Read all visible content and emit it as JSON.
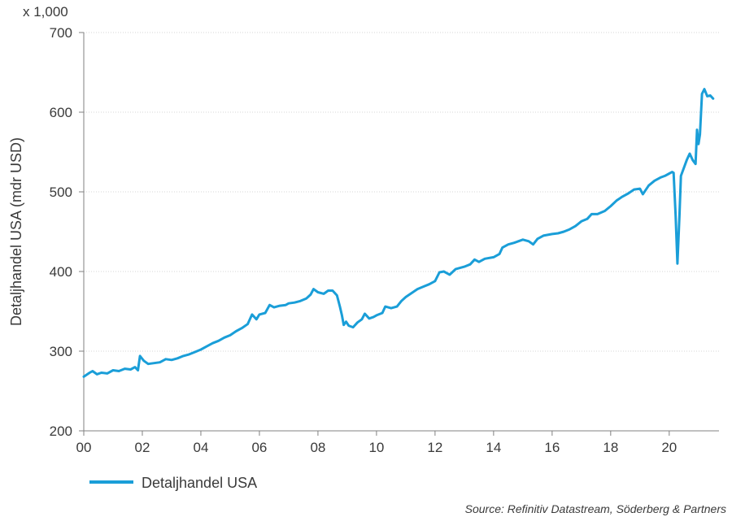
{
  "chart_data": {
    "type": "line",
    "scale_note": "x 1,000",
    "ylabel": "Detaljhandel USA (mdr USD)",
    "ylim": [
      200,
      700
    ],
    "yticks": [
      200,
      300,
      400,
      500,
      600,
      700
    ],
    "xlim": [
      2000,
      2021.7
    ],
    "xticks": [
      {
        "value": 2000,
        "label": "00"
      },
      {
        "value": 2002,
        "label": "02"
      },
      {
        "value": 2004,
        "label": "04"
      },
      {
        "value": 2006,
        "label": "06"
      },
      {
        "value": 2008,
        "label": "08"
      },
      {
        "value": 2010,
        "label": "10"
      },
      {
        "value": 2012,
        "label": "12"
      },
      {
        "value": 2014,
        "label": "14"
      },
      {
        "value": 2016,
        "label": "16"
      },
      {
        "value": 2018,
        "label": "18"
      },
      {
        "value": 2020,
        "label": "20"
      }
    ],
    "grid": true,
    "legend_position": "bottom-left",
    "series": [
      {
        "name": "Detaljhandel USA",
        "color": "#1a9ed8",
        "points": [
          [
            2000.0,
            268
          ],
          [
            2000.2,
            273
          ],
          [
            2000.3,
            275
          ],
          [
            2000.45,
            271
          ],
          [
            2000.6,
            273
          ],
          [
            2000.8,
            272
          ],
          [
            2001.0,
            276
          ],
          [
            2001.2,
            275
          ],
          [
            2001.4,
            278
          ],
          [
            2001.6,
            277
          ],
          [
            2001.75,
            280
          ],
          [
            2001.85,
            276
          ],
          [
            2001.92,
            294
          ],
          [
            2002.05,
            288
          ],
          [
            2002.2,
            284
          ],
          [
            2002.4,
            285
          ],
          [
            2002.6,
            286
          ],
          [
            2002.8,
            290
          ],
          [
            2003.0,
            289
          ],
          [
            2003.2,
            291
          ],
          [
            2003.4,
            294
          ],
          [
            2003.6,
            296
          ],
          [
            2003.8,
            299
          ],
          [
            2004.0,
            302
          ],
          [
            2004.2,
            306
          ],
          [
            2004.4,
            310
          ],
          [
            2004.6,
            313
          ],
          [
            2004.8,
            317
          ],
          [
            2005.0,
            320
          ],
          [
            2005.2,
            325
          ],
          [
            2005.4,
            329
          ],
          [
            2005.6,
            334
          ],
          [
            2005.75,
            346
          ],
          [
            2005.9,
            340
          ],
          [
            2006.0,
            346
          ],
          [
            2006.2,
            348
          ],
          [
            2006.35,
            358
          ],
          [
            2006.5,
            355
          ],
          [
            2006.7,
            357
          ],
          [
            2006.9,
            358
          ],
          [
            2007.0,
            360
          ],
          [
            2007.2,
            361
          ],
          [
            2007.4,
            363
          ],
          [
            2007.6,
            366
          ],
          [
            2007.75,
            371
          ],
          [
            2007.85,
            378
          ],
          [
            2008.0,
            374
          ],
          [
            2008.2,
            372
          ],
          [
            2008.35,
            376
          ],
          [
            2008.5,
            376
          ],
          [
            2008.65,
            370
          ],
          [
            2008.75,
            356
          ],
          [
            2008.82,
            345
          ],
          [
            2008.88,
            333
          ],
          [
            2008.96,
            337
          ],
          [
            2009.05,
            332
          ],
          [
            2009.2,
            330
          ],
          [
            2009.35,
            336
          ],
          [
            2009.5,
            340
          ],
          [
            2009.6,
            347
          ],
          [
            2009.75,
            341
          ],
          [
            2009.9,
            343
          ],
          [
            2010.0,
            345
          ],
          [
            2010.2,
            348
          ],
          [
            2010.3,
            356
          ],
          [
            2010.5,
            354
          ],
          [
            2010.7,
            356
          ],
          [
            2010.85,
            363
          ],
          [
            2011.0,
            368
          ],
          [
            2011.2,
            373
          ],
          [
            2011.4,
            378
          ],
          [
            2011.6,
            381
          ],
          [
            2011.8,
            384
          ],
          [
            2012.0,
            388
          ],
          [
            2012.15,
            399
          ],
          [
            2012.3,
            400
          ],
          [
            2012.5,
            396
          ],
          [
            2012.7,
            403
          ],
          [
            2013.0,
            406
          ],
          [
            2013.2,
            409
          ],
          [
            2013.35,
            415
          ],
          [
            2013.5,
            412
          ],
          [
            2013.7,
            416
          ],
          [
            2014.0,
            418
          ],
          [
            2014.2,
            422
          ],
          [
            2014.3,
            430
          ],
          [
            2014.5,
            434
          ],
          [
            2014.7,
            436
          ],
          [
            2015.0,
            440
          ],
          [
            2015.2,
            438
          ],
          [
            2015.35,
            434
          ],
          [
            2015.5,
            441
          ],
          [
            2015.7,
            445
          ],
          [
            2016.0,
            447
          ],
          [
            2016.2,
            448
          ],
          [
            2016.4,
            450
          ],
          [
            2016.6,
            453
          ],
          [
            2016.8,
            457
          ],
          [
            2017.0,
            463
          ],
          [
            2017.2,
            466
          ],
          [
            2017.35,
            472
          ],
          [
            2017.55,
            472
          ],
          [
            2017.8,
            476
          ],
          [
            2018.0,
            482
          ],
          [
            2018.2,
            489
          ],
          [
            2018.4,
            494
          ],
          [
            2018.6,
            498
          ],
          [
            2018.8,
            503
          ],
          [
            2019.0,
            504
          ],
          [
            2019.1,
            497
          ],
          [
            2019.3,
            508
          ],
          [
            2019.5,
            514
          ],
          [
            2019.7,
            518
          ],
          [
            2019.85,
            520
          ],
          [
            2020.0,
            523
          ],
          [
            2020.1,
            525
          ],
          [
            2020.15,
            524
          ],
          [
            2020.22,
            470
          ],
          [
            2020.28,
            410
          ],
          [
            2020.35,
            470
          ],
          [
            2020.4,
            520
          ],
          [
            2020.5,
            530
          ],
          [
            2020.6,
            540
          ],
          [
            2020.7,
            548
          ],
          [
            2020.8,
            540
          ],
          [
            2020.9,
            535
          ],
          [
            2020.95,
            578
          ],
          [
            2021.0,
            560
          ],
          [
            2021.05,
            572
          ],
          [
            2021.12,
            623
          ],
          [
            2021.2,
            629
          ],
          [
            2021.3,
            620
          ],
          [
            2021.4,
            621
          ],
          [
            2021.5,
            617
          ]
        ]
      }
    ],
    "source": "Source: Refinitiv Datastream, Söderberg & Partners"
  }
}
